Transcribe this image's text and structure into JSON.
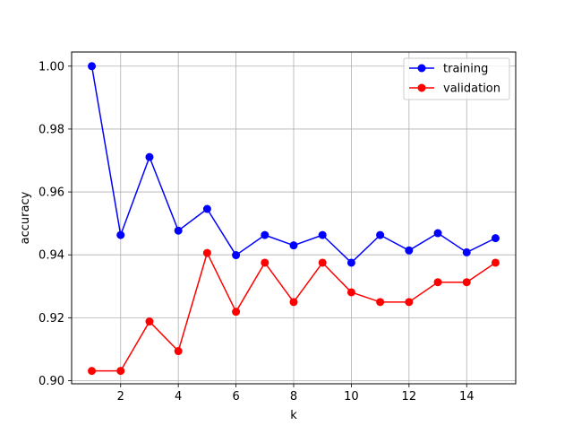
{
  "chart_data": {
    "type": "line",
    "title": "",
    "xlabel": "k",
    "ylabel": "accuracy",
    "x": [
      1,
      2,
      3,
      4,
      5,
      6,
      7,
      8,
      9,
      10,
      11,
      12,
      13,
      14,
      15
    ],
    "xlim": [
      0.3,
      15.7
    ],
    "ylim": [
      0.899,
      1.0045
    ],
    "xticks": [
      2,
      4,
      6,
      8,
      10,
      12,
      14
    ],
    "yticks": [
      0.9,
      0.92,
      0.94,
      0.96,
      0.98,
      1.0
    ],
    "xtick_labels": [
      "2",
      "4",
      "6",
      "8",
      "10",
      "12",
      "14"
    ],
    "ytick_labels": [
      "0.90",
      "0.92",
      "0.94",
      "0.96",
      "0.98",
      "1.00"
    ],
    "grid": true,
    "legend_position": "top-right",
    "series": [
      {
        "name": "training",
        "color": "#0000ff",
        "marker": "circle",
        "values": [
          1.0,
          0.9463,
          0.9711,
          0.9477,
          0.9546,
          0.9399,
          0.9463,
          0.943,
          0.9463,
          0.9375,
          0.9463,
          0.9414,
          0.9469,
          0.9408,
          0.9453
        ]
      },
      {
        "name": "validation",
        "color": "#ff0000",
        "marker": "circle",
        "values": [
          0.9031,
          0.9031,
          0.9188,
          0.9094,
          0.9406,
          0.9219,
          0.9375,
          0.925,
          0.9375,
          0.9281,
          0.925,
          0.925,
          0.9313,
          0.9313,
          0.9375
        ]
      }
    ]
  }
}
